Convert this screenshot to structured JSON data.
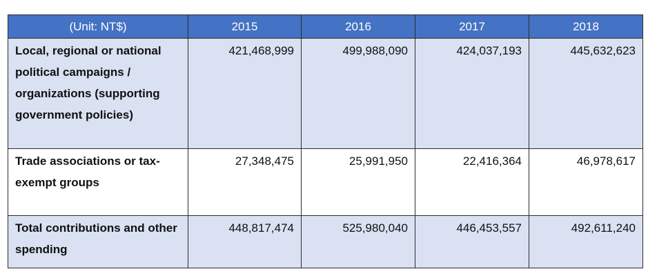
{
  "table": {
    "unit_header": "(Unit: NT$)",
    "years": [
      "2015",
      "2016",
      "2017",
      "2018"
    ],
    "rows": [
      {
        "label": "Local, regional or national political campaigns / organizations (supporting government policies)",
        "values": [
          "421,468,999",
          "499,988,090",
          "424,037,193",
          "445,632,623"
        ]
      },
      {
        "label": "Trade associations or tax-exempt groups",
        "values": [
          "27,348,475",
          "25,991,950",
          "22,416,364",
          "46,978,617"
        ]
      },
      {
        "label": "Total contributions and other spending",
        "values": [
          "448,817,474",
          "525,980,040",
          "446,453,557",
          "492,611,240"
        ]
      }
    ],
    "colors": {
      "header_bg": "#4472c4",
      "band_bg": "#d9e1f2",
      "plain_bg": "#ffffff",
      "border": "#2b2b2b"
    }
  }
}
